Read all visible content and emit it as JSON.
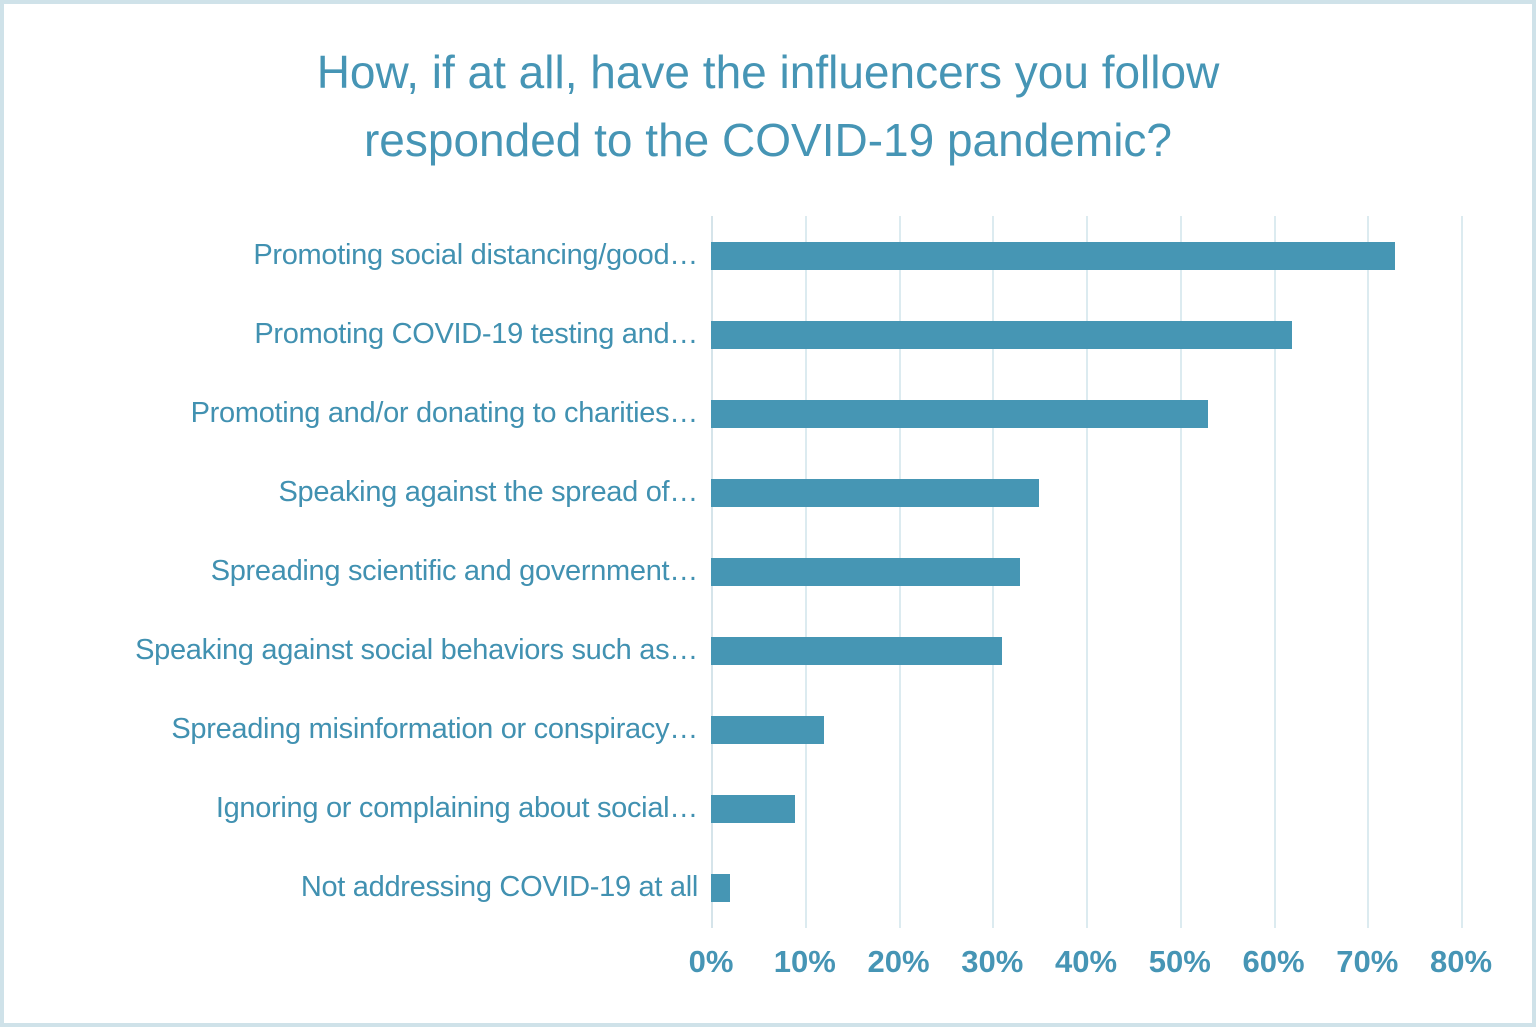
{
  "title_lines": [
    "How, if at all, have the influencers you follow",
    "responded to the COVID-19 pandemic?"
  ],
  "chart_data": {
    "type": "bar",
    "orientation": "horizontal",
    "title": "How, if at all, have the influencers you follow responded to the COVID-19 pandemic?",
    "categories": [
      "Promoting social distancing/good…",
      "Promoting COVID-19 testing and…",
      "Promoting and/or donating to charities…",
      "Speaking against the spread of…",
      "Spreading scientific and government…",
      "Speaking against social behaviors such as…",
      "Spreading misinformation or conspiracy…",
      "Ignoring or complaining about social…",
      "Not addressing COVID-19 at all"
    ],
    "values": [
      73,
      62,
      53,
      35,
      33,
      31,
      12,
      9,
      2
    ],
    "value_unit": "%",
    "xlim": [
      0,
      80
    ],
    "x_tick_labels": [
      "0%",
      "10%",
      "20%",
      "30%",
      "40%",
      "50%",
      "60%",
      "70%",
      "80%"
    ],
    "grid": true,
    "legend": "none",
    "colors": {
      "bar": "#4696b4",
      "title_text": "#4695b5",
      "label_text": "#4191b1",
      "tick_text": "#4695b5",
      "gridline": "#dcebf0",
      "frame_border": "#cfe2e9",
      "background": "#ffffff"
    }
  }
}
